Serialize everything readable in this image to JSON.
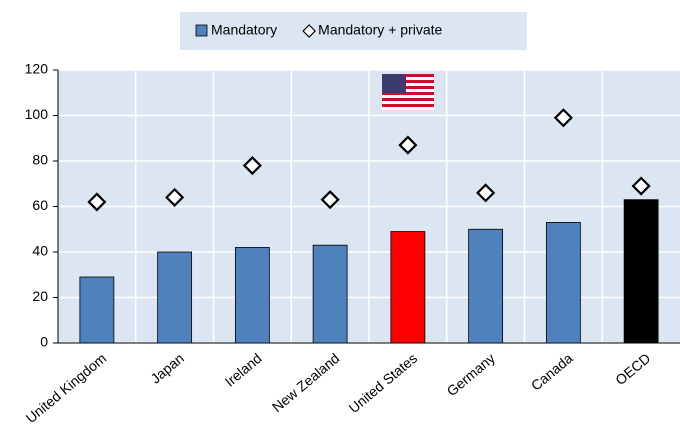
{
  "chart_data": {
    "type": "bar",
    "categories": [
      "United Kingdom",
      "Japan",
      "Ireland",
      "New Zealand",
      "United States",
      "Germany",
      "Canada",
      "OECD"
    ],
    "series": [
      {
        "name": "Mandatory",
        "type": "bar",
        "color": "#4f81bd",
        "colors": [
          "#4f81bd",
          "#4f81bd",
          "#4f81bd",
          "#4f81bd",
          "#ff0000",
          "#4f81bd",
          "#4f81bd",
          "#000000"
        ],
        "values": [
          29,
          40,
          42,
          43,
          49,
          50,
          53,
          63
        ]
      },
      {
        "name": "Mandatory + private",
        "type": "marker",
        "color": "#ffffff",
        "values": [
          62,
          64,
          78,
          63,
          87,
          66,
          99,
          69
        ]
      }
    ],
    "ylim": [
      0,
      120
    ],
    "yticks": [
      0,
      20,
      40,
      60,
      80,
      100,
      120
    ],
    "grid": true,
    "legend": "top"
  }
}
